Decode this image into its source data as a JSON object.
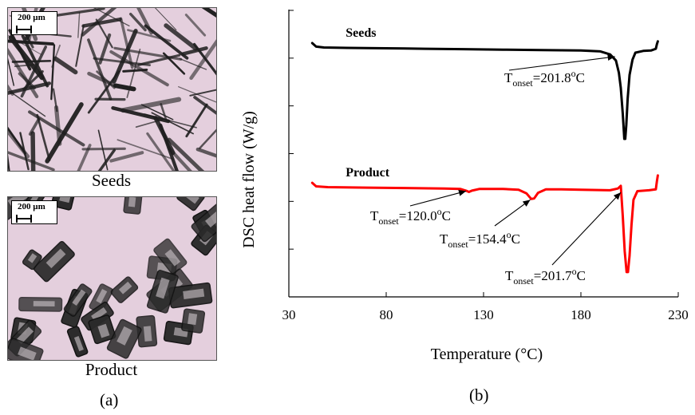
{
  "panel_a": {
    "seeds_scale": "200 µm",
    "product_scale": "200 µm",
    "seeds_caption": "Seeds",
    "product_caption": "Product",
    "label": "(a)"
  },
  "panel_b": {
    "label": "(b)"
  },
  "colors": {
    "seeds": "#000000",
    "product": "#ff0000",
    "photo_background": "#e4cfdd",
    "crystal_dark": "#1e1e1e"
  },
  "chart_data": {
    "type": "line",
    "xlabel": "Temperature (°C)",
    "ylabel": "DSC heat flow (W/g)",
    "xlim": [
      30,
      230
    ],
    "xticks": [
      "30",
      "80",
      "130",
      "180",
      "230"
    ],
    "y_tick_count": 6,
    "y_tick_values_printed": false,
    "grid": false,
    "legend": "none",
    "series": [
      {
        "name": "Seeds",
        "x": [
          42,
          44,
          48,
          60,
          80,
          100,
          120,
          140,
          160,
          180,
          190,
          195,
          198,
          199.5,
          200.5,
          201.5,
          202.3,
          202.8,
          203.3,
          204,
          205,
          206.5,
          208,
          212,
          216,
          218.5,
          219,
          219.5
        ],
        "y": [
          -0.02,
          -0.1,
          -0.12,
          -0.13,
          -0.14,
          -0.15,
          -0.16,
          -0.17,
          -0.18,
          -0.19,
          -0.21,
          -0.28,
          -0.42,
          -0.7,
          -1.05,
          -1.65,
          -2.22,
          -2.22,
          -1.9,
          -1.3,
          -0.75,
          -0.4,
          -0.24,
          -0.2,
          -0.19,
          -0.15,
          -0.05,
          0.02
        ]
      },
      {
        "name": "Product",
        "x": [
          42,
          44,
          50,
          70,
          90,
          110,
          118,
          121,
          122.5,
          124,
          128,
          140,
          148,
          152,
          154.5,
          156,
          158,
          162,
          170,
          180,
          195,
          199,
          200.5,
          201.5,
          202.5,
          203.5,
          204.2,
          205,
          206,
          207,
          209,
          215,
          218.5,
          219,
          219.5
        ],
        "y": [
          -3.23,
          -3.31,
          -3.33,
          -3.34,
          -3.35,
          -3.36,
          -3.37,
          -3.41,
          -3.44,
          -3.41,
          -3.37,
          -3.37,
          -3.39,
          -3.47,
          -3.6,
          -3.59,
          -3.46,
          -3.38,
          -3.38,
          -3.39,
          -3.4,
          -3.36,
          -3.3,
          -4.0,
          -4.8,
          -5.28,
          -5.28,
          -4.9,
          -4.2,
          -3.62,
          -3.42,
          -3.4,
          -3.38,
          -3.2,
          -3.06
        ]
      }
    ],
    "annotations": [
      {
        "series": "Seeds",
        "prefix": "T",
        "sub": "onset",
        "value": "=201.8",
        "sup": "o",
        "unit": "C",
        "arrow_to": [
          197.5,
          -0.33
        ]
      },
      {
        "series": "Product",
        "prefix": "T",
        "sub": "onset",
        "value": "=120.0",
        "sup": "o",
        "unit": "C",
        "arrow_to": [
          121,
          -3.42
        ]
      },
      {
        "series": "Product",
        "prefix": "T",
        "sub": "onset",
        "value": "=154.4",
        "sup": "o",
        "unit": "C",
        "arrow_to": [
          154,
          -3.62
        ]
      },
      {
        "series": "Product",
        "prefix": "T",
        "sub": "onset",
        "value": "=201.7",
        "sup": "o",
        "unit": "C",
        "arrow_to": [
          200.5,
          -3.45
        ]
      }
    ]
  }
}
